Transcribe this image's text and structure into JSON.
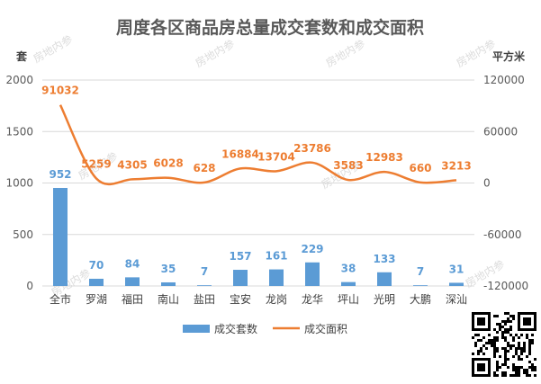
{
  "colors": {
    "bar": "#5b9bd5",
    "line": "#ed7d31",
    "grid": "#d9d9d9",
    "axis_text": "#595959",
    "title": "#595959",
    "watermark": "#dcdcdc"
  },
  "watermark_text": "房地内参",
  "chart_data": {
    "type": "bar",
    "title": "周度各区商品房总量成交套数和成交面积",
    "ylabel_left": "套",
    "ylabel_right": "平方米",
    "ylim_left": [
      0,
      2000
    ],
    "yticks_left": [
      0,
      500,
      1000,
      1500,
      2000
    ],
    "ylim_right": [
      -120000,
      120000
    ],
    "yticks_right": [
      -120000,
      -60000,
      0,
      60000,
      120000
    ],
    "grid": true,
    "legend_position": "bottom",
    "categories": [
      "全市",
      "罗湖",
      "福田",
      "南山",
      "盐田",
      "宝安",
      "龙岗",
      "龙华",
      "坪山",
      "光明",
      "大鹏",
      "深汕"
    ],
    "series": [
      {
        "name": "成交套数",
        "type": "bar",
        "axis": "left",
        "values": [
          952,
          70,
          84,
          35,
          7,
          157,
          161,
          229,
          38,
          133,
          7,
          31
        ]
      },
      {
        "name": "成交面积",
        "type": "line",
        "axis": "right",
        "smooth": true,
        "values": [
          91032,
          5259,
          4305,
          6028,
          628,
          16884,
          13704,
          23786,
          3583,
          12983,
          660,
          3213
        ]
      }
    ]
  }
}
